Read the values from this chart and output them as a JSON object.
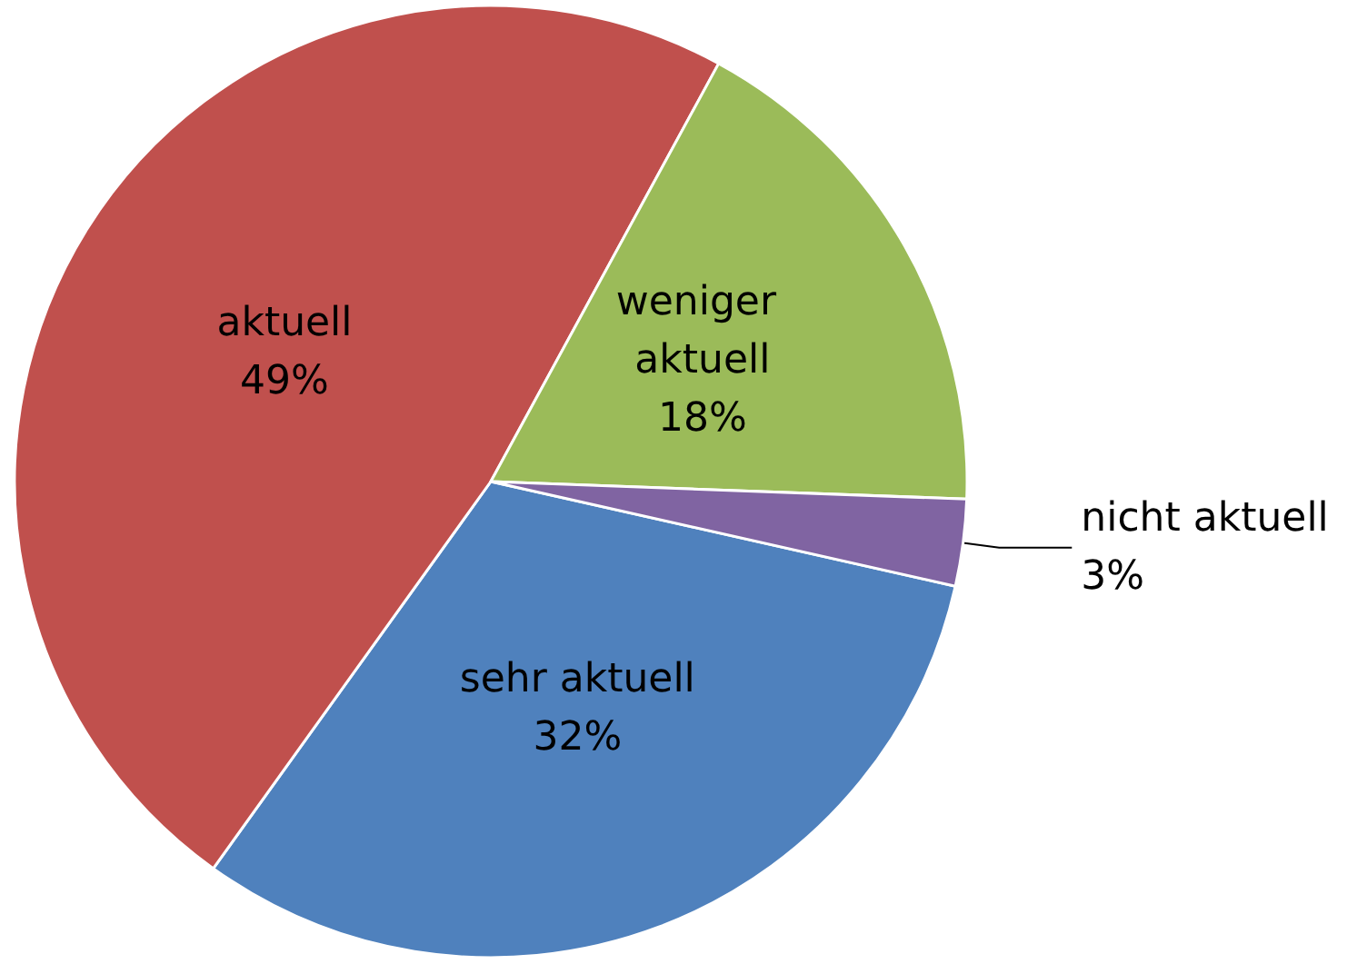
{
  "chart_data": {
    "type": "pie",
    "categories": [
      "sehr aktuell",
      "aktuell",
      "weniger aktuell",
      "nicht aktuell"
    ],
    "values": [
      32,
      49,
      18,
      3
    ],
    "value_labels": [
      "32%",
      "49%",
      "18%",
      "3%"
    ],
    "colors": [
      "#4f81bd",
      "#c0504d",
      "#9bbb59",
      "#8064a2"
    ],
    "legend": false
  }
}
